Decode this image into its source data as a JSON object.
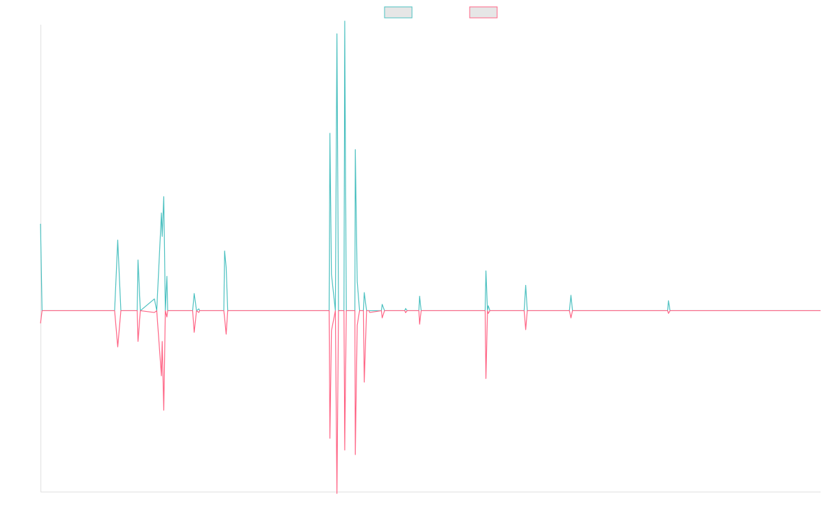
{
  "chart_data": {
    "type": "line",
    "title": "",
    "xlabel": "",
    "ylabel": "",
    "x_range": [
      0,
      1000
    ],
    "y_range": [
      -100,
      158
    ],
    "grid": false,
    "legend": {
      "placement": "top-center",
      "style": "swatch-only"
    },
    "series": [
      {
        "color": "#4bc0c0",
        "points": [
          [
            0,
            48
          ],
          [
            2,
            0
          ],
          [
            94,
            0
          ],
          [
            95,
            0
          ],
          [
            99,
            39
          ],
          [
            103,
            0
          ],
          [
            112,
            0
          ],
          [
            124,
            0
          ],
          [
            125,
            28
          ],
          [
            128,
            0
          ],
          [
            146,
            6.5
          ],
          [
            149,
            0
          ],
          [
            155,
            54
          ],
          [
            156,
            41
          ],
          [
            158,
            63
          ],
          [
            160,
            0
          ],
          [
            162,
            19
          ],
          [
            163,
            0
          ],
          [
            195,
            0
          ],
          [
            197,
            9.5
          ],
          [
            200,
            0
          ],
          [
            203,
            1
          ],
          [
            204,
            0
          ],
          [
            235,
            0
          ],
          [
            236,
            33
          ],
          [
            238,
            24
          ],
          [
            240,
            0
          ],
          [
            290,
            0
          ],
          [
            291,
            0
          ],
          [
            370,
            0
          ],
          [
            371,
            98
          ],
          [
            373,
            20
          ],
          [
            378,
            0
          ],
          [
            380,
            153
          ],
          [
            382,
            0
          ],
          [
            389,
            0
          ],
          [
            390,
            160
          ],
          [
            392,
            0
          ],
          [
            403,
            0
          ],
          [
            403.5,
            89
          ],
          [
            406,
            16
          ],
          [
            409,
            0
          ],
          [
            414,
            0
          ],
          [
            415,
            10
          ],
          [
            418,
            0
          ],
          [
            421,
            0
          ],
          [
            422,
            0
          ],
          [
            437,
            0
          ],
          [
            438,
            3.5
          ],
          [
            441,
            0
          ],
          [
            467,
            0
          ],
          [
            468,
            1.2
          ],
          [
            470,
            0
          ],
          [
            485,
            0
          ],
          [
            486,
            8
          ],
          [
            488,
            0
          ],
          [
            503,
            0
          ],
          [
            570,
            0
          ],
          [
            571,
            22
          ],
          [
            573,
            0
          ],
          [
            574,
            2.7
          ],
          [
            576,
            0
          ],
          [
            620,
            0
          ],
          [
            622,
            14
          ],
          [
            624,
            0
          ],
          [
            678,
            0
          ],
          [
            680,
            8.5
          ],
          [
            682,
            0
          ],
          [
            722,
            0
          ],
          [
            723,
            0
          ],
          [
            804,
            0
          ],
          [
            805,
            5.5
          ],
          [
            807,
            0
          ],
          [
            1000,
            0
          ]
        ]
      },
      {
        "color": "#ff6384",
        "points": [
          [
            0,
            -7
          ],
          [
            2,
            0
          ],
          [
            94,
            0
          ],
          [
            95,
            0
          ],
          [
            99,
            -20
          ],
          [
            103,
            0
          ],
          [
            112,
            0
          ],
          [
            124,
            0
          ],
          [
            125,
            -17
          ],
          [
            128,
            0
          ],
          [
            146,
            -1
          ],
          [
            149,
            0
          ],
          [
            155,
            -36
          ],
          [
            156,
            -17
          ],
          [
            158,
            -55
          ],
          [
            160,
            0
          ],
          [
            162,
            -3.5
          ],
          [
            163,
            0
          ],
          [
            195,
            0
          ],
          [
            197,
            -12
          ],
          [
            200,
            0
          ],
          [
            203,
            -1
          ],
          [
            204,
            0
          ],
          [
            235,
            0
          ],
          [
            236,
            -4
          ],
          [
            238,
            -13
          ],
          [
            240,
            0
          ],
          [
            290,
            0
          ],
          [
            291,
            0
          ],
          [
            370,
            0
          ],
          [
            371,
            -70.5
          ],
          [
            373,
            -11
          ],
          [
            378,
            0
          ],
          [
            380,
            -101
          ],
          [
            382,
            0
          ],
          [
            389,
            0
          ],
          [
            390,
            -77
          ],
          [
            392,
            0
          ],
          [
            403,
            0
          ],
          [
            403.5,
            -79.5
          ],
          [
            406,
            -8
          ],
          [
            409,
            0
          ],
          [
            414,
            0
          ],
          [
            415,
            -39.5
          ],
          [
            418,
            0
          ],
          [
            421,
            0
          ],
          [
            422,
            -1
          ],
          [
            437,
            0
          ],
          [
            438,
            -4
          ],
          [
            441,
            0
          ],
          [
            467,
            0
          ],
          [
            468,
            -1.1
          ],
          [
            470,
            0
          ],
          [
            485,
            0
          ],
          [
            486,
            -7.5
          ],
          [
            488,
            0
          ],
          [
            503,
            0
          ],
          [
            570,
            0
          ],
          [
            571,
            -37.5
          ],
          [
            573,
            0
          ],
          [
            574,
            -1.5
          ],
          [
            576,
            0
          ],
          [
            620,
            0
          ],
          [
            622,
            -10.5
          ],
          [
            624,
            0
          ],
          [
            678,
            0
          ],
          [
            680,
            -4
          ],
          [
            682,
            0
          ],
          [
            722,
            0
          ],
          [
            723,
            0
          ],
          [
            804,
            0
          ],
          [
            805,
            -1.5
          ],
          [
            807,
            0
          ],
          [
            1000,
            0
          ]
        ]
      }
    ]
  }
}
